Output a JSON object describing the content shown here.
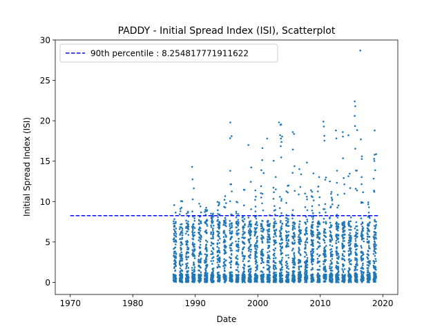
{
  "chart_data": {
    "type": "scatter",
    "title": "PADDY - Initial Spread Index (ISI), Scatterplot",
    "xlabel": "Date",
    "ylabel": "Initial Spread Index (ISI)",
    "xlim": [
      1967.6,
      2022.4
    ],
    "ylim": [
      -1.5,
      30
    ],
    "x_ticks": [
      1970,
      1980,
      1990,
      2000,
      2010,
      2020
    ],
    "y_ticks": [
      0,
      5,
      10,
      15,
      20,
      25,
      30
    ],
    "x_tick_labels": [
      "1970",
      "1980",
      "1990",
      "2000",
      "2010",
      "2020"
    ],
    "y_tick_labels": [
      "0",
      "5",
      "10",
      "15",
      "20",
      "25",
      "30"
    ],
    "grid": false,
    "point_color": "#1f77b4",
    "reference_line": {
      "label": "90th percentile : 8.254817771911622",
      "value": 8.254817771911622,
      "x_range": [
        1970,
        2019.5
      ],
      "color": "#0000ff",
      "style": "dashed"
    },
    "legend": {
      "placement": "upper-left"
    },
    "series": [
      {
        "season_starts": [
          1986.5,
          1987.5,
          1988.5,
          1989.5,
          1990.5,
          1991.5,
          1992.5,
          1993.5,
          1994.5,
          1995.5,
          1996.5,
          1997.5,
          1998.5,
          1999.5,
          2000.5,
          2001.5,
          2002.5,
          2003.5,
          2004.5,
          2005.5,
          2006.5,
          2007.5,
          2008.5,
          2009.5,
          2010.5,
          2011.5,
          2012.5,
          2013.5,
          2014.5,
          2015.5,
          2016.5,
          2017.5,
          2018.5
        ],
        "season_length": 0.45,
        "season_max_isi": [
          11.0,
          10.2,
          9.0,
          14.3,
          11.2,
          9.5,
          9.0,
          10.0,
          12.0,
          19.8,
          10.5,
          12.0,
          17.0,
          12.3,
          17.8,
          11.0,
          15.6,
          19.8,
          14.2,
          18.6,
          15.2,
          15.0,
          15.2,
          14.0,
          19.9,
          12.5,
          18.8,
          18.6,
          15.1,
          22.4,
          17.8,
          10.2,
          18.8
        ],
        "outliers": [
          {
            "x": 2016.4,
            "y": 28.7
          },
          {
            "x": 2015.5,
            "y": 22.4
          },
          {
            "x": 2015.6,
            "y": 21.8
          },
          {
            "x": 2015.5,
            "y": 20.6
          },
          {
            "x": 2003.4,
            "y": 19.8
          },
          {
            "x": 2010.5,
            "y": 19.9
          },
          {
            "x": 1995.6,
            "y": 19.8
          },
          {
            "x": 2005.6,
            "y": 18.6
          },
          {
            "x": 2018.7,
            "y": 18.8
          },
          {
            "x": 2012.5,
            "y": 18.8
          },
          {
            "x": 2013.6,
            "y": 18.6
          },
          {
            "x": 2014.5,
            "y": 18.2
          },
          {
            "x": 2001.5,
            "y": 17.8
          },
          {
            "x": 2016.5,
            "y": 17.7
          },
          {
            "x": 1998.5,
            "y": 17.0
          },
          {
            "x": 1989.5,
            "y": 14.3
          },
          {
            "x": 2018.7,
            "y": 15.8
          }
        ],
        "sample_size": 3600,
        "distribution": "mostly 0-8, sparse tail to ~20"
      }
    ]
  }
}
